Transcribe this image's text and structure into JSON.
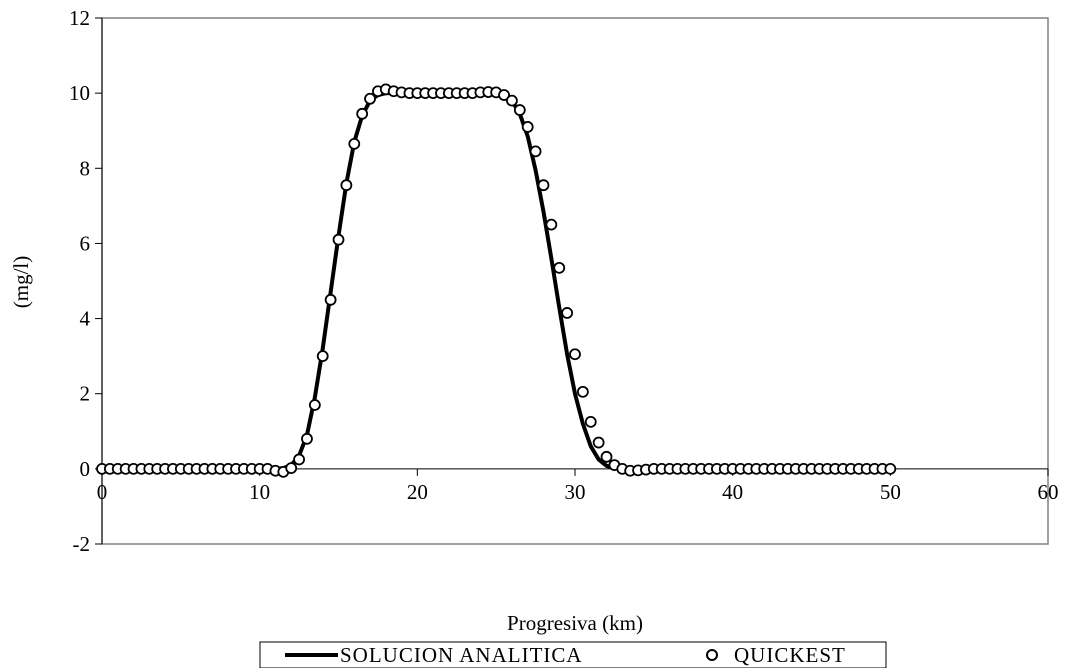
{
  "chart_data": {
    "type": "line",
    "title": "",
    "xlabel": "Progresiva (km)",
    "ylabel": "(mg/l)",
    "xlim": [
      0,
      60
    ],
    "ylim": [
      -2,
      12
    ],
    "xticks": [
      0,
      10,
      20,
      30,
      40,
      50,
      60
    ],
    "yticks": [
      -2,
      0,
      2,
      4,
      6,
      8,
      10,
      12
    ],
    "grid": false,
    "legend_position": "bottom",
    "series": [
      {
        "name": "SOLUCION ANALITICA",
        "style": "solid-line",
        "color": "#000000",
        "x": [
          0,
          2,
          4,
          6,
          8,
          10,
          11,
          11.5,
          12,
          12.5,
          13,
          13.5,
          14,
          14.5,
          15,
          15.5,
          16,
          16.5,
          17,
          17.5,
          18,
          19,
          20,
          21,
          22,
          23,
          24,
          24.5,
          25,
          25.5,
          26,
          26.5,
          27,
          27.5,
          28,
          28.5,
          29,
          29.5,
          30,
          30.5,
          31,
          31.5,
          32,
          32.5,
          33,
          34,
          36,
          40,
          45,
          50
        ],
        "y": [
          0,
          0,
          0,
          0,
          0,
          0,
          0,
          0.02,
          0.1,
          0.35,
          0.9,
          1.9,
          3.2,
          4.7,
          6.2,
          7.6,
          8.7,
          9.4,
          9.8,
          9.95,
          10,
          10,
          10,
          10,
          10,
          10,
          10,
          10,
          10,
          9.95,
          9.8,
          9.45,
          8.85,
          7.95,
          6.85,
          5.6,
          4.3,
          3.05,
          2.0,
          1.2,
          0.6,
          0.25,
          0.08,
          0.02,
          0,
          0,
          0,
          0,
          0,
          0
        ]
      },
      {
        "name": "QUICKEST",
        "style": "hollow-circle-markers",
        "color": "#000000",
        "x": [
          0,
          0.5,
          1,
          1.5,
          2,
          2.5,
          3,
          3.5,
          4,
          4.5,
          5,
          5.5,
          6,
          6.5,
          7,
          7.5,
          8,
          8.5,
          9,
          9.5,
          10,
          10.5,
          11,
          11.5,
          12,
          12.5,
          13,
          13.5,
          14,
          14.5,
          15,
          15.5,
          16,
          16.5,
          17,
          17.5,
          18,
          18.5,
          19,
          19.5,
          20,
          20.5,
          21,
          21.5,
          22,
          22.5,
          23,
          23.5,
          24,
          24.5,
          25,
          25.5,
          26,
          26.5,
          27,
          27.5,
          28,
          28.5,
          29,
          29.5,
          30,
          30.5,
          31,
          31.5,
          32,
          32.5,
          33,
          33.5,
          34,
          34.5,
          35,
          35.5,
          36,
          36.5,
          37,
          37.5,
          38,
          38.5,
          39,
          39.5,
          40,
          40.5,
          41,
          41.5,
          42,
          42.5,
          43,
          43.5,
          44,
          44.5,
          45,
          45.5,
          46,
          46.5,
          47,
          47.5,
          48,
          48.5,
          49,
          49.5,
          50
        ],
        "y": [
          0,
          0,
          0,
          0,
          0,
          0,
          0,
          0,
          0,
          0,
          0,
          0,
          0,
          0,
          0,
          0,
          0,
          0,
          0,
          0,
          0,
          0,
          -0.05,
          -0.08,
          0.02,
          0.25,
          0.8,
          1.7,
          3.0,
          4.5,
          6.1,
          7.55,
          8.65,
          9.45,
          9.85,
          10.05,
          10.1,
          10.05,
          10.02,
          10.0,
          10.0,
          10.0,
          10.0,
          10.0,
          10.0,
          10.0,
          10.0,
          10.0,
          10.02,
          10.03,
          10.02,
          9.95,
          9.8,
          9.55,
          9.1,
          8.45,
          7.55,
          6.5,
          5.35,
          4.15,
          3.05,
          2.05,
          1.25,
          0.7,
          0.32,
          0.1,
          0.0,
          -0.05,
          -0.04,
          -0.02,
          0,
          0,
          0,
          0,
          0,
          0,
          0,
          0,
          0,
          0,
          0,
          0,
          0,
          0,
          0,
          0,
          0,
          0,
          0,
          0,
          0,
          0,
          0,
          0,
          0,
          0,
          0,
          0,
          0,
          0,
          0
        ]
      }
    ]
  }
}
